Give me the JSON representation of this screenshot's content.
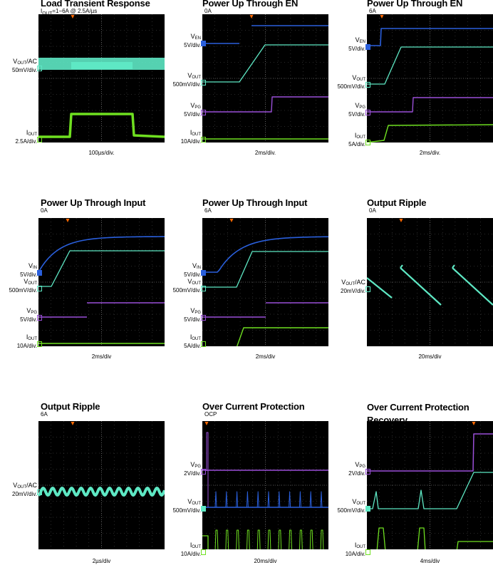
{
  "panels": [
    {
      "title": "Load Transient Response",
      "subtitle": "I_OUT=1−6A @ 2.5A/µs",
      "time_scale": "100µs/div.",
      "channels": [
        {
          "name": "V_OUT/AC",
          "scale": "50mV/div."
        },
        {
          "name": "I_OUT",
          "scale": "2.5A/div."
        }
      ]
    },
    {
      "title": "Power Up Through EN",
      "subtitle": "0A",
      "time_scale": "2ms/div.",
      "channels": [
        {
          "name": "V_EN",
          "scale": "5V/div."
        },
        {
          "name": "V_OUT",
          "scale": "500mV/div."
        },
        {
          "name": "V_PG",
          "scale": "5V/div."
        },
        {
          "name": "I_OUT",
          "scale": "10A/div."
        }
      ]
    },
    {
      "title": "Power Up Through EN",
      "subtitle": "6A",
      "time_scale": "2ms/div.",
      "channels": [
        {
          "name": "V_EN",
          "scale": "5V/div."
        },
        {
          "name": "V_OUT",
          "scale": "500mV/div."
        },
        {
          "name": "V_PG",
          "scale": "5V/div."
        },
        {
          "name": "I_OUT",
          "scale": "5A/div."
        }
      ]
    },
    {
      "title": "Power Up Through Input",
      "subtitle": "0A",
      "time_scale": "2ms/div",
      "channels": [
        {
          "name": "V_IN",
          "scale": "5V/div."
        },
        {
          "name": "V_OUT",
          "scale": "500mV/div."
        },
        {
          "name": "V_PG",
          "scale": "5V/div."
        },
        {
          "name": "I_OUT",
          "scale": "10A/div."
        }
      ]
    },
    {
      "title": "Power Up Through Input",
      "subtitle": "6A",
      "time_scale": "2ms/div",
      "channels": [
        {
          "name": "V_IN",
          "scale": "5V/div."
        },
        {
          "name": "V_OUT",
          "scale": "500mV/div."
        },
        {
          "name": "V_PG",
          "scale": "5V/div."
        },
        {
          "name": "I_OUT",
          "scale": "5A/div."
        }
      ]
    },
    {
      "title": "Output Ripple",
      "subtitle": "0A",
      "time_scale": "20ms/div",
      "channels": [
        {
          "name": "V_OUT/AC",
          "scale": "20mV/div."
        }
      ]
    },
    {
      "title": "Output Ripple",
      "subtitle": "6A",
      "time_scale": "2µs/div",
      "channels": [
        {
          "name": "V_OUT/AC",
          "scale": "20mV/div."
        }
      ]
    },
    {
      "title": "Over Current Protection",
      "subtitle": "OCP",
      "time_scale": "20ms/div",
      "channels": [
        {
          "name": "V_PG",
          "scale": "2V/div."
        },
        {
          "name": "V_OUT",
          "scale": "500mV/div."
        },
        {
          "name": "I_OUT",
          "scale": "10A/div."
        }
      ]
    },
    {
      "title": "Over Current Protection Recovery",
      "subtitle": "",
      "time_scale": "4ms/div",
      "channels": [
        {
          "name": "V_PG",
          "scale": "2V/div."
        },
        {
          "name": "V_OUT",
          "scale": "500mV/div."
        },
        {
          "name": "I_OUT",
          "scale": "10A/div."
        }
      ]
    }
  ],
  "colors": {
    "background": "#000000",
    "grid": "#555555",
    "vout": "#5ee8c4",
    "vin_en": "#2a5fdc",
    "vpg": "#9a4fd8",
    "iout": "#6fe020",
    "trigger": "#ff6a00"
  },
  "chart_data": [
    {
      "type": "line",
      "title": "Load Transient Response",
      "subtitle": "I_OUT=1−6A @ 2.5A/µs",
      "xlabel": "100µs/div.",
      "series": [
        {
          "name": "V_OUT/AC"
        },
        {
          "name": "I_OUT",
          "values_A": [
            1,
            6,
            1
          ]
        }
      ]
    },
    {
      "type": "line",
      "title": "Power Up Through EN",
      "subtitle": "0A",
      "xlabel": "2ms/div.",
      "series": [
        {
          "name": "V_EN"
        },
        {
          "name": "V_OUT"
        },
        {
          "name": "V_PG"
        },
        {
          "name": "I_OUT"
        }
      ]
    },
    {
      "type": "line",
      "title": "Power Up Through EN",
      "subtitle": "6A",
      "xlabel": "2ms/div.",
      "series": [
        {
          "name": "V_EN"
        },
        {
          "name": "V_OUT"
        },
        {
          "name": "V_PG"
        },
        {
          "name": "I_OUT"
        }
      ]
    },
    {
      "type": "line",
      "title": "Power Up Through Input",
      "subtitle": "0A",
      "xlabel": "2ms/div",
      "series": [
        {
          "name": "V_IN"
        },
        {
          "name": "V_OUT"
        },
        {
          "name": "V_PG"
        },
        {
          "name": "I_OUT"
        }
      ]
    },
    {
      "type": "line",
      "title": "Power Up Through Input",
      "subtitle": "6A",
      "xlabel": "2ms/div",
      "series": [
        {
          "name": "V_IN"
        },
        {
          "name": "V_OUT"
        },
        {
          "name": "V_PG"
        },
        {
          "name": "I_OUT"
        }
      ]
    },
    {
      "type": "line",
      "title": "Output Ripple",
      "subtitle": "0A",
      "xlabel": "20ms/div",
      "series": [
        {
          "name": "V_OUT/AC"
        }
      ]
    },
    {
      "type": "line",
      "title": "Output Ripple",
      "subtitle": "6A",
      "xlabel": "2µs/div",
      "series": [
        {
          "name": "V_OUT/AC"
        }
      ]
    },
    {
      "type": "line",
      "title": "Over Current Protection",
      "subtitle": "OCP",
      "xlabel": "20ms/div",
      "series": [
        {
          "name": "V_PG"
        },
        {
          "name": "V_OUT"
        },
        {
          "name": "I_OUT"
        }
      ]
    },
    {
      "type": "line",
      "title": "Over Current Protection Recovery",
      "xlabel": "4ms/div",
      "series": [
        {
          "name": "V_PG"
        },
        {
          "name": "V_OUT"
        },
        {
          "name": "I_OUT"
        }
      ]
    }
  ]
}
